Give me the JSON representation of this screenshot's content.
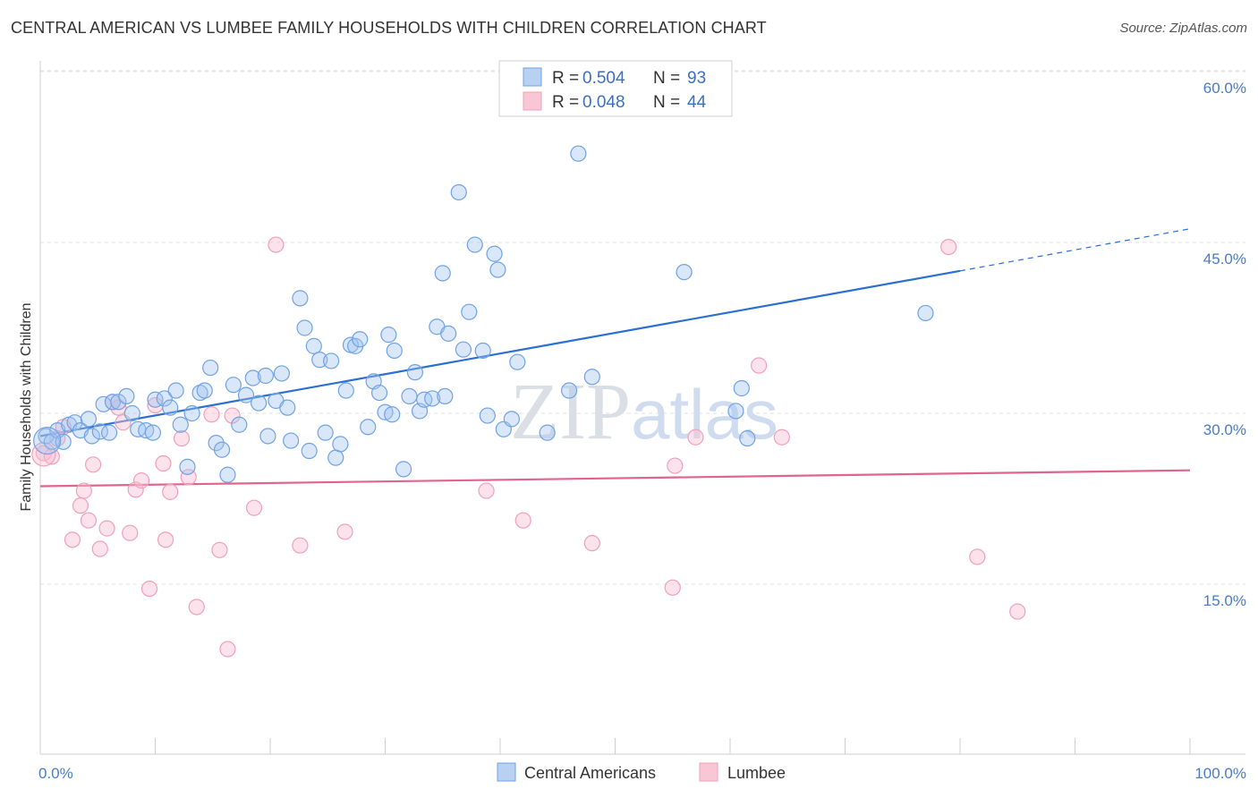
{
  "title": "CENTRAL AMERICAN VS LUMBEE FAMILY HOUSEHOLDS WITH CHILDREN CORRELATION CHART",
  "source": "Source: ZipAtlas.com",
  "watermark": "ZIPatlas",
  "colors": {
    "blue": "#6fa3e6",
    "blue_line": "#2b6fd1",
    "pink": "#f0a0ba",
    "pink_line": "#e0648c",
    "tick": "#4a7cc7"
  },
  "legend": {
    "rows": [
      {
        "r_label": "R =",
        "r_value": "0.504",
        "n_label": "N =",
        "n_value": "93"
      },
      {
        "r_label": "R =",
        "r_value": "0.048",
        "n_label": "N =",
        "n_value": "44"
      }
    ]
  },
  "bottom_legend": [
    "Central Americans",
    "Lumbee"
  ],
  "chart_data": {
    "type": "scatter",
    "title": "CENTRAL AMERICAN VS LUMBEE FAMILY HOUSEHOLDS WITH CHILDREN CORRELATION CHART",
    "xlabel": "",
    "ylabel": "Family Households with Children",
    "xlim": [
      0,
      100
    ],
    "ylim": [
      0,
      60
    ],
    "x_tick_labels": [
      "0.0%",
      "100.0%"
    ],
    "y_ticks": [
      15,
      30,
      45,
      60
    ],
    "y_tick_labels": [
      "15.0%",
      "30.0%",
      "45.0%",
      "60.0%"
    ],
    "grid": "horizontal dashed",
    "legend_position": "top-center",
    "series": [
      {
        "name": "Central Americans",
        "R": 0.504,
        "N": 93,
        "trend": {
          "x0": 0,
          "y0": 28.0,
          "x1": 80,
          "y1": 42.5,
          "dash_to_x": 100,
          "dash_to_y": 46.2
        },
        "points": [
          [
            0.5,
            28.0
          ],
          [
            1.0,
            27.5
          ],
          [
            1.5,
            28.5
          ],
          [
            2.0,
            27.5
          ],
          [
            2.5,
            29.0
          ],
          [
            3.0,
            29.2
          ],
          [
            3.5,
            28.5
          ],
          [
            4.2,
            29.5
          ],
          [
            4.5,
            28.0
          ],
          [
            5.2,
            28.4
          ],
          [
            5.5,
            30.8
          ],
          [
            6.0,
            28.3
          ],
          [
            6.3,
            31.0
          ],
          [
            6.8,
            31.0
          ],
          [
            7.5,
            31.5
          ],
          [
            8.0,
            30.0
          ],
          [
            8.5,
            28.6
          ],
          [
            9.2,
            28.5
          ],
          [
            9.8,
            28.3
          ],
          [
            10.0,
            31.2
          ],
          [
            10.8,
            31.3
          ],
          [
            11.3,
            30.5
          ],
          [
            11.8,
            32.0
          ],
          [
            12.2,
            29.0
          ],
          [
            12.8,
            25.3
          ],
          [
            13.2,
            30.0
          ],
          [
            13.9,
            31.8
          ],
          [
            14.3,
            32.0
          ],
          [
            14.8,
            34.0
          ],
          [
            15.3,
            27.4
          ],
          [
            15.8,
            26.8
          ],
          [
            16.3,
            24.6
          ],
          [
            16.8,
            32.5
          ],
          [
            17.3,
            29.0
          ],
          [
            17.9,
            31.6
          ],
          [
            18.5,
            33.1
          ],
          [
            19.0,
            30.9
          ],
          [
            19.6,
            33.3
          ],
          [
            19.8,
            28.0
          ],
          [
            20.5,
            31.1
          ],
          [
            21.0,
            33.5
          ],
          [
            21.5,
            30.5
          ],
          [
            21.8,
            27.6
          ],
          [
            22.6,
            40.1
          ],
          [
            23.0,
            37.5
          ],
          [
            23.4,
            26.7
          ],
          [
            23.8,
            35.9
          ],
          [
            24.3,
            34.7
          ],
          [
            24.8,
            28.3
          ],
          [
            25.3,
            34.6
          ],
          [
            25.7,
            26.1
          ],
          [
            26.1,
            27.3
          ],
          [
            26.6,
            32.0
          ],
          [
            27.0,
            36.0
          ],
          [
            27.4,
            35.9
          ],
          [
            27.8,
            36.5
          ],
          [
            28.5,
            28.8
          ],
          [
            29.0,
            32.8
          ],
          [
            29.5,
            31.8
          ],
          [
            30.0,
            30.1
          ],
          [
            30.3,
            36.9
          ],
          [
            30.8,
            35.5
          ],
          [
            31.6,
            25.1
          ],
          [
            32.1,
            31.5
          ],
          [
            32.6,
            33.6
          ],
          [
            33.0,
            30.2
          ],
          [
            33.4,
            31.2
          ],
          [
            34.1,
            31.3
          ],
          [
            34.5,
            37.6
          ],
          [
            35.0,
            42.3
          ],
          [
            35.5,
            37.0
          ],
          [
            36.4,
            49.4
          ],
          [
            36.8,
            35.6
          ],
          [
            37.3,
            38.9
          ],
          [
            37.8,
            44.8
          ],
          [
            38.5,
            35.5
          ],
          [
            38.9,
            29.8
          ],
          [
            39.5,
            44.0
          ],
          [
            39.8,
            42.6
          ],
          [
            40.3,
            28.6
          ],
          [
            41.0,
            29.5
          ],
          [
            41.5,
            34.5
          ],
          [
            44.1,
            28.3
          ],
          [
            46.0,
            32.0
          ],
          [
            46.8,
            52.8
          ],
          [
            48.0,
            33.2
          ],
          [
            56.0,
            42.4
          ],
          [
            60.5,
            30.2
          ],
          [
            61.0,
            32.2
          ],
          [
            61.5,
            27.8
          ],
          [
            77.0,
            38.8
          ],
          [
            35.2,
            31.5
          ],
          [
            30.6,
            29.9
          ]
        ]
      },
      {
        "name": "Lumbee",
        "R": 0.048,
        "N": 44,
        "trend": {
          "x0": 0,
          "y0": 23.6,
          "x1": 100,
          "y1": 25.0
        },
        "points": [
          [
            0.3,
            26.5
          ],
          [
            1.0,
            26.2
          ],
          [
            2.0,
            28.8
          ],
          [
            2.8,
            18.9
          ],
          [
            3.5,
            21.9
          ],
          [
            3.8,
            23.2
          ],
          [
            4.2,
            20.6
          ],
          [
            4.6,
            25.5
          ],
          [
            5.2,
            18.1
          ],
          [
            5.8,
            19.9
          ],
          [
            6.8,
            30.5
          ],
          [
            7.2,
            29.2
          ],
          [
            7.8,
            19.5
          ],
          [
            8.3,
            23.3
          ],
          [
            8.8,
            24.1
          ],
          [
            9.5,
            14.6
          ],
          [
            10.0,
            30.7
          ],
          [
            10.7,
            25.6
          ],
          [
            10.9,
            18.9
          ],
          [
            11.3,
            23.1
          ],
          [
            12.3,
            27.8
          ],
          [
            12.9,
            24.4
          ],
          [
            13.6,
            13.0
          ],
          [
            14.9,
            29.9
          ],
          [
            15.6,
            18.0
          ],
          [
            16.3,
            9.3
          ],
          [
            16.7,
            29.8
          ],
          [
            18.6,
            21.7
          ],
          [
            20.5,
            44.8
          ],
          [
            22.6,
            18.4
          ],
          [
            26.5,
            19.6
          ],
          [
            38.8,
            23.2
          ],
          [
            42.0,
            20.6
          ],
          [
            48.0,
            18.6
          ],
          [
            55.0,
            14.7
          ],
          [
            55.2,
            25.4
          ],
          [
            57.0,
            27.9
          ],
          [
            62.5,
            34.2
          ],
          [
            64.5,
            27.9
          ],
          [
            79.0,
            44.6
          ],
          [
            81.5,
            17.4
          ],
          [
            85.0,
            12.6
          ],
          [
            1.5,
            27.8
          ],
          [
            6.3,
            31.0
          ]
        ]
      }
    ]
  }
}
